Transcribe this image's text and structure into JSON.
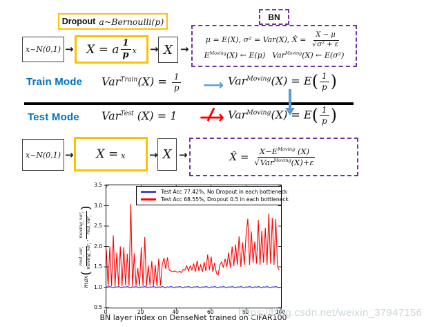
{
  "colors": {
    "accent_yellow": "#FFC000",
    "accent_purple": "#7030A0",
    "mode_blue": "#0070C0",
    "arrow_blue": "#5B9BD5",
    "alert_red": "#FF0000",
    "chart_blue": "#4646DC",
    "chart_red": "#FF0000",
    "watermark_gray": "#CCD5DB"
  },
  "icons": {
    "arrow_right": "→",
    "long_arrow_right": "⟶"
  },
  "top": {
    "dropout_bold": "Dropout",
    "dropout_math": "a~Bernoulli(p)",
    "input_box": "x~N(0,1)",
    "transform": {
      "lhs": "X = a",
      "frac_num": "1",
      "frac_den": "p",
      "rhs": "x"
    },
    "output_box": "X",
    "bn_tab": "BN",
    "bn_line1": {
      "pre": "μ = E(X), σ² = Var(X), X̂ =",
      "num": "X − μ",
      "radical": "√",
      "den_arg": "σ² + ε"
    },
    "bn_line2": {
      "b1": "E",
      "s1": "Moving",
      "m1": "(X) ← E(μ)",
      "gap": "  ",
      "b2": "Var",
      "s2": "Moving",
      "m2": "(X) ← E(σ²)"
    }
  },
  "train": {
    "label": "Train Mode",
    "lhs_base": "Var",
    "lhs_sup": "Train",
    "lhs_mid": "(X) =",
    "lhs_num": "1",
    "lhs_den": "p",
    "rhs_base": "Var",
    "rhs_sup": "Moving",
    "rhs_mid": "(X) = E",
    "rhs_lp": "(",
    "rhs_num": "1",
    "rhs_den": "p",
    "rhs_rp": ")"
  },
  "test": {
    "label": "Test Mode",
    "lhs_base": "Var",
    "lhs_sup": "Test",
    "lhs_mid": " (X) = 1",
    "rhs_base": "Var",
    "rhs_sup": "Moving",
    "rhs_mid": "(X) = E",
    "rhs_lp": "(",
    "rhs_num": "1",
    "rhs_den": "p",
    "rhs_rp": ")"
  },
  "bottom_pipeline": {
    "input_box": "x~N(0,1)",
    "transform_lhs": "X =",
    "transform_rhs": "x",
    "output_box": "X",
    "formula": {
      "lhs": "X̂ =",
      "num_base": "X−E",
      "num_sup": "Moving",
      "num_tail": " (X)",
      "radical": "√",
      "den_base": "Var",
      "den_sup": "Moving",
      "den_tail": "(X)+ε"
    }
  },
  "chart_data": {
    "type": "line",
    "title": "",
    "xlabel": "BN layer index on DenseNet trained on CIFAR100",
    "ylabel": "max(real_var_i/moving_var_i, moving_var_i/real_var_i)",
    "xlim": [
      0,
      100
    ],
    "ylim": [
      0.5,
      3.5
    ],
    "xticks": [
      0,
      20,
      40,
      60,
      80,
      100
    ],
    "yticks": [
      0.5,
      1.0,
      1.5,
      2.0,
      2.5,
      3.0,
      3.5
    ],
    "grid": false,
    "legend_position": "upper center",
    "ylabel_parts": {
      "func": "max",
      "lp": "(",
      "f1n": "real_var",
      "f1d": "moving_var",
      "comma": ",",
      "f2n": "moving_var",
      "f2d": "real_var",
      "rp": ")",
      "sub": "i"
    },
    "series": [
      {
        "name": "Test Acc 77.42%, No Dropout in each bottleneck",
        "color": "#4646DC",
        "values": [
          1.01,
          1.0,
          1.02,
          1.0,
          0.99,
          1.01,
          1.0,
          1.02,
          1.0,
          0.99,
          1.01,
          1.0,
          1.02,
          1.0,
          0.99,
          1.01,
          1.0,
          1.02,
          1.0,
          0.99,
          1.01,
          1.0,
          1.02,
          1.0,
          0.99,
          1.01,
          1.0,
          1.02,
          1.0,
          0.99,
          1.01,
          1.0,
          1.02,
          1.0,
          0.99,
          1.01,
          1.0,
          1.02,
          1.0,
          0.99,
          1.01,
          1.0,
          1.02,
          1.0,
          0.99,
          1.01,
          1.0,
          1.02,
          1.0,
          0.99,
          1.01,
          1.0,
          1.02,
          1.0,
          0.99,
          1.01,
          1.0,
          1.02,
          1.0,
          0.99,
          1.01,
          1.0,
          1.02,
          1.0,
          0.99,
          1.01,
          1.0,
          1.02,
          1.0,
          0.99,
          1.01,
          1.0,
          1.02,
          1.0,
          0.99,
          1.01,
          1.0,
          1.02,
          1.0,
          0.99,
          1.01,
          1.0,
          1.02,
          1.0,
          0.99,
          1.01,
          1.0,
          1.02,
          1.0,
          0.99,
          1.01,
          1.0,
          1.02,
          1.0,
          0.99,
          1.01,
          1.0,
          1.02,
          1.0,
          0.99
        ]
      },
      {
        "name": "Test Acc 68.55%, Dropout 0.5 in each bottleneck",
        "color": "#FF0000",
        "values": [
          1.92,
          1.02,
          2.0,
          1.03,
          2.27,
          1.02,
          1.85,
          1.04,
          2.0,
          1.02,
          1.98,
          1.05,
          1.82,
          1.03,
          3.04,
          1.02,
          1.83,
          1.04,
          1.47,
          1.02,
          1.98,
          1.03,
          2.23,
          1.02,
          1.53,
          1.05,
          1.64,
          1.03,
          1.55,
          1.02,
          1.7,
          1.04,
          1.55,
          1.72,
          1.45,
          1.73,
          1.42,
          1.4,
          1.38,
          1.4,
          1.38,
          1.37,
          1.39,
          1.36,
          1.44,
          1.42,
          1.53,
          1.4,
          1.52,
          1.42,
          1.58,
          1.38,
          1.65,
          1.4,
          1.55,
          1.38,
          1.62,
          1.4,
          1.8,
          1.42,
          1.75,
          1.38,
          1.6,
          1.35,
          1.3,
          1.55,
          1.62,
          1.48,
          1.7,
          1.5,
          1.85,
          1.48,
          2.0,
          1.52,
          2.05,
          1.55,
          2.25,
          1.5,
          2.1,
          1.55,
          2.3,
          2.68,
          1.55,
          2.37,
          1.6,
          2.12,
          1.58,
          2.65,
          1.55,
          2.38,
          1.6,
          2.45,
          1.55,
          2.81,
          1.58,
          2.7,
          1.55,
          2.67,
          1.5,
          1.42
        ]
      }
    ]
  },
  "watermark": "https://blog.csdn.net/weixin_37947156"
}
